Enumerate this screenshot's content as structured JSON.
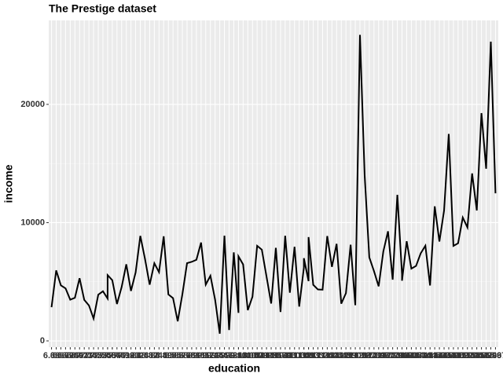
{
  "chart_data": {
    "type": "line",
    "title": "The Prestige dataset",
    "x_label": "education",
    "y_label": "income",
    "categories": [
      "6.38",
      "6.6",
      "6.67",
      "6.69",
      "6.74",
      "6.84",
      "6.92",
      "7.11",
      "7.33",
      "7.42",
      "7.52",
      "7.54",
      "7.58",
      "7.58",
      "7.64",
      "7.64",
      "7.74",
      "7.81",
      "7.92",
      "7.93",
      "8.1",
      "8.24",
      "8.33",
      "8.37",
      "8.4",
      "8.43",
      "8.49",
      "8.5",
      "8.55",
      "8.6",
      "8.76",
      "8.78",
      "8.81",
      "8.88",
      "9.05",
      "9.17",
      "9.22",
      "9.45",
      "9.46",
      "9.47",
      "9.62",
      "9.84",
      "9.93",
      "9.93",
      "10",
      "10.05",
      "10.07",
      "10.09",
      "10.1",
      "10.29",
      "10.51",
      "10.57",
      "10.64",
      "10.93",
      "11",
      "11.03",
      "11.04",
      "11.09",
      "11.09",
      "11.13",
      "11.13",
      "11.2",
      "11.32",
      "11.36",
      "11.42",
      "11.43",
      "11.44",
      "11.49",
      "11.59",
      "11.6",
      "12.09",
      "12.26",
      "12.27",
      "12.3",
      "12.39",
      "12.46",
      "12.71",
      "12.77",
      "12.79",
      "13.11",
      "13.62",
      "13.62",
      "13.83",
      "14.15",
      "14.21",
      "14.36",
      "14.44",
      "14.5",
      "14.52",
      "14.62",
      "14.64",
      "14.71",
      "15.08",
      "15.09",
      "15.21",
      "15.22",
      "15.44",
      "15.64",
      "15.77",
      "15.94",
      "15.96",
      "15.97"
    ],
    "values": [
      2847,
      5959,
      4696,
      4443,
      3485,
      3643,
      5299,
      3472,
      3000,
      1890,
      3910,
      4199,
      3582,
      5562,
      5134,
      5134,
      3116,
      4549,
      6477,
      4224,
      5795,
      8880,
      6928,
      4753,
      6565,
      5811,
      8845,
      3930,
      3617,
      1656,
      3942,
      6573,
      6686,
      6860,
      8316,
      4761,
      5511,
      3485,
      611,
      8895,
      918,
      7482,
      2370,
      7147,
      6462,
      2594,
      3739,
      8043,
      7716,
      5449,
      3161,
      7869,
      2448,
      8891,
      4075,
      7956,
      2901,
      6197,
      6992,
      5052,
      8780,
      4741,
      4348,
      4330,
      8865,
      6259,
      8206,
      3148,
      4036,
      8131,
      3016,
      25879,
      14032,
      7059,
      5902,
      4614,
      7562,
      9271,
      5180,
      12351,
      5648,
      5092,
      8425,
      6112,
      6336,
      7405,
      8049,
      4686,
      11377,
      8403,
      11023,
      17498,
      8034,
      8258,
      10432,
      9593,
      14163,
      11030,
      19263,
      14558,
      25308,
      12480
    ],
    "color": "#000000",
    "ylim": [
      -530,
      27100
    ],
    "yticks": [
      0,
      10000,
      20000
    ],
    "grid": true
  }
}
